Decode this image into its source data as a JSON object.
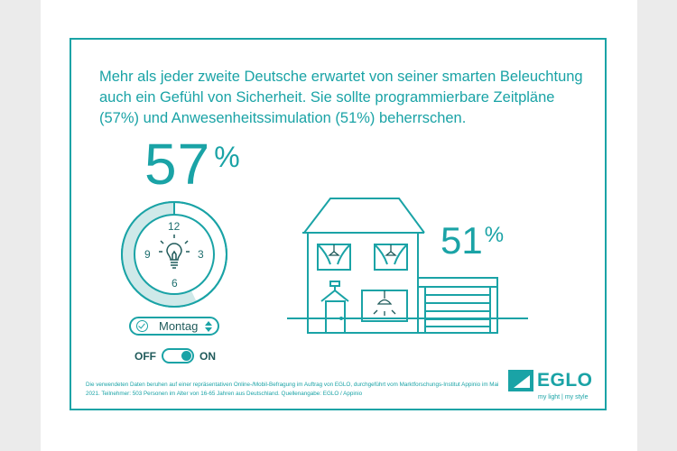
{
  "headline": "Mehr als jeder zweite Deutsche erwartet von seiner smarten Beleuchtung auch ein Gefühl von Sicherheit. Sie sollte programmierbare Zeitpläne (57%) und Anwesenheitssimulation (51%) beherrschen.",
  "stat_schedule": {
    "value": "57",
    "unit": "%"
  },
  "stat_presence": {
    "value": "51",
    "unit": "%"
  },
  "clock": {
    "n12": "12",
    "n3": "3",
    "n6": "6",
    "n9": "9",
    "progress": 0.57
  },
  "day_selector": {
    "label": "Montag"
  },
  "toggle": {
    "off_label": "OFF",
    "on_label": "ON",
    "state": "on"
  },
  "footnote": "Die verwendeten Daten beruhen auf einer repräsentativen Online-/Mobil-Befragung im Auftrag von EGLO, durchgeführt vom Marktforschungs-Institut Appinio im Mai 2021. Teilnehmer: 503 Personen im Alter von 16-65 Jahren aus Deutschland. Quellenangabe: EGLO / Appinio",
  "logo": {
    "word": "EGLO",
    "tagline": "my light | my style"
  },
  "colors": {
    "accent": "#1aa3a6",
    "accent_light": "#cfe9e9",
    "frame_bg": "#ebebeb"
  },
  "icons": [
    "lightbulb-icon",
    "check-circle-icon",
    "sort-arrows-icon",
    "house-illustration",
    "garage-illustration",
    "lamp-icon"
  ]
}
